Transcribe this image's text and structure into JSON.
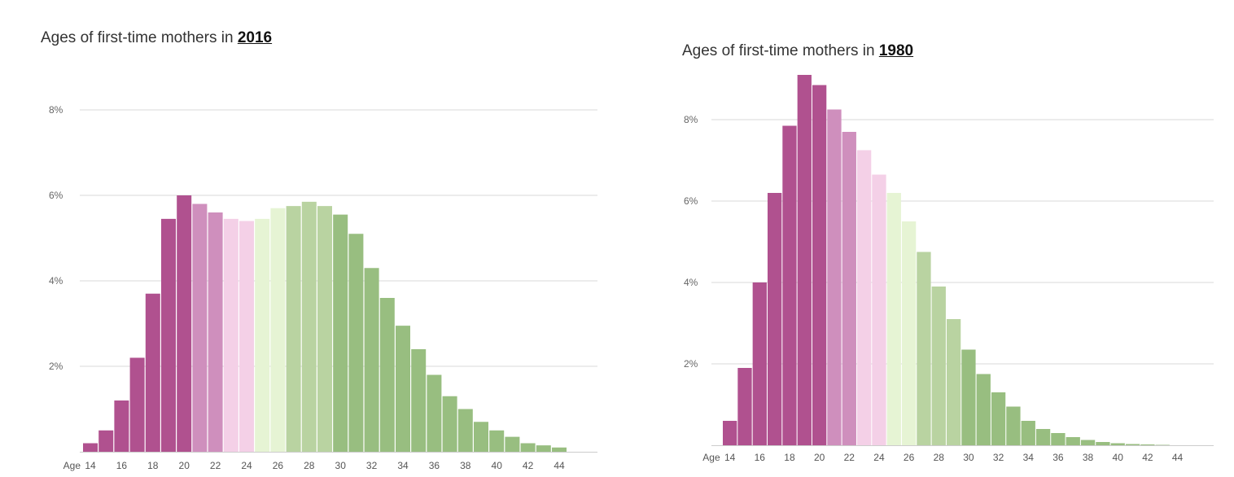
{
  "colors": {
    "ages_14_20": "#b0518f",
    "ages_21_22": "#cf8fbd",
    "ages_23_24": "#f4d0e7",
    "ages_25_26": "#e6f4d4",
    "ages_27_29": "#b9d3a1",
    "ages_30_plus": "#98be80",
    "gridline": "#d9d9d9",
    "axis": "#cccccc"
  },
  "chart_data": [
    {
      "type": "bar",
      "title_prefix": "Ages of first-time mothers in",
      "title_year": "2016",
      "x_prefix_label": "Age",
      "categories": [
        14,
        15,
        16,
        17,
        18,
        19,
        20,
        21,
        22,
        23,
        24,
        25,
        26,
        27,
        28,
        29,
        30,
        31,
        32,
        33,
        34,
        35,
        36,
        37,
        38,
        39,
        40,
        41,
        42,
        43,
        44
      ],
      "x_tick_labels": [
        "14",
        "16",
        "18",
        "20",
        "22",
        "24",
        "26",
        "28",
        "30",
        "32",
        "34",
        "36",
        "38",
        "40",
        "42",
        "44"
      ],
      "values": [
        0.2,
        0.5,
        1.2,
        2.2,
        3.7,
        5.45,
        6.0,
        5.8,
        5.6,
        5.45,
        5.4,
        5.45,
        5.7,
        5.75,
        5.85,
        5.75,
        5.55,
        5.1,
        4.3,
        3.6,
        2.95,
        2.4,
        1.8,
        1.3,
        1.0,
        0.7,
        0.5,
        0.35,
        0.2,
        0.15,
        0.1
      ],
      "y_ticks": [
        "2%",
        "4%",
        "6%",
        "8%"
      ],
      "ylim": [
        0,
        8.8
      ],
      "ylabel": "",
      "xlabel": ""
    },
    {
      "type": "bar",
      "title_prefix": "Ages of first-time mothers in",
      "title_year": "1980",
      "x_prefix_label": "Age",
      "categories": [
        14,
        15,
        16,
        17,
        18,
        19,
        20,
        21,
        22,
        23,
        24,
        25,
        26,
        27,
        28,
        29,
        30,
        31,
        32,
        33,
        34,
        35,
        36,
        37,
        38,
        39,
        40,
        41,
        42,
        43,
        44
      ],
      "x_tick_labels": [
        "14",
        "16",
        "18",
        "20",
        "22",
        "24",
        "26",
        "28",
        "30",
        "32",
        "34",
        "36",
        "38",
        "40",
        "42",
        "44"
      ],
      "values": [
        0.6,
        1.9,
        4.0,
        6.2,
        7.85,
        9.1,
        8.85,
        8.25,
        7.7,
        7.25,
        6.65,
        6.2,
        5.5,
        4.75,
        3.9,
        3.1,
        2.35,
        1.75,
        1.3,
        0.95,
        0.6,
        0.4,
        0.3,
        0.2,
        0.13,
        0.08,
        0.05,
        0.03,
        0.02,
        0.01,
        0.0
      ],
      "y_ticks": [
        "2%",
        "4%",
        "6%",
        "8%"
      ],
      "ylim": [
        0,
        9.1
      ],
      "ylabel": "",
      "xlabel": ""
    }
  ]
}
